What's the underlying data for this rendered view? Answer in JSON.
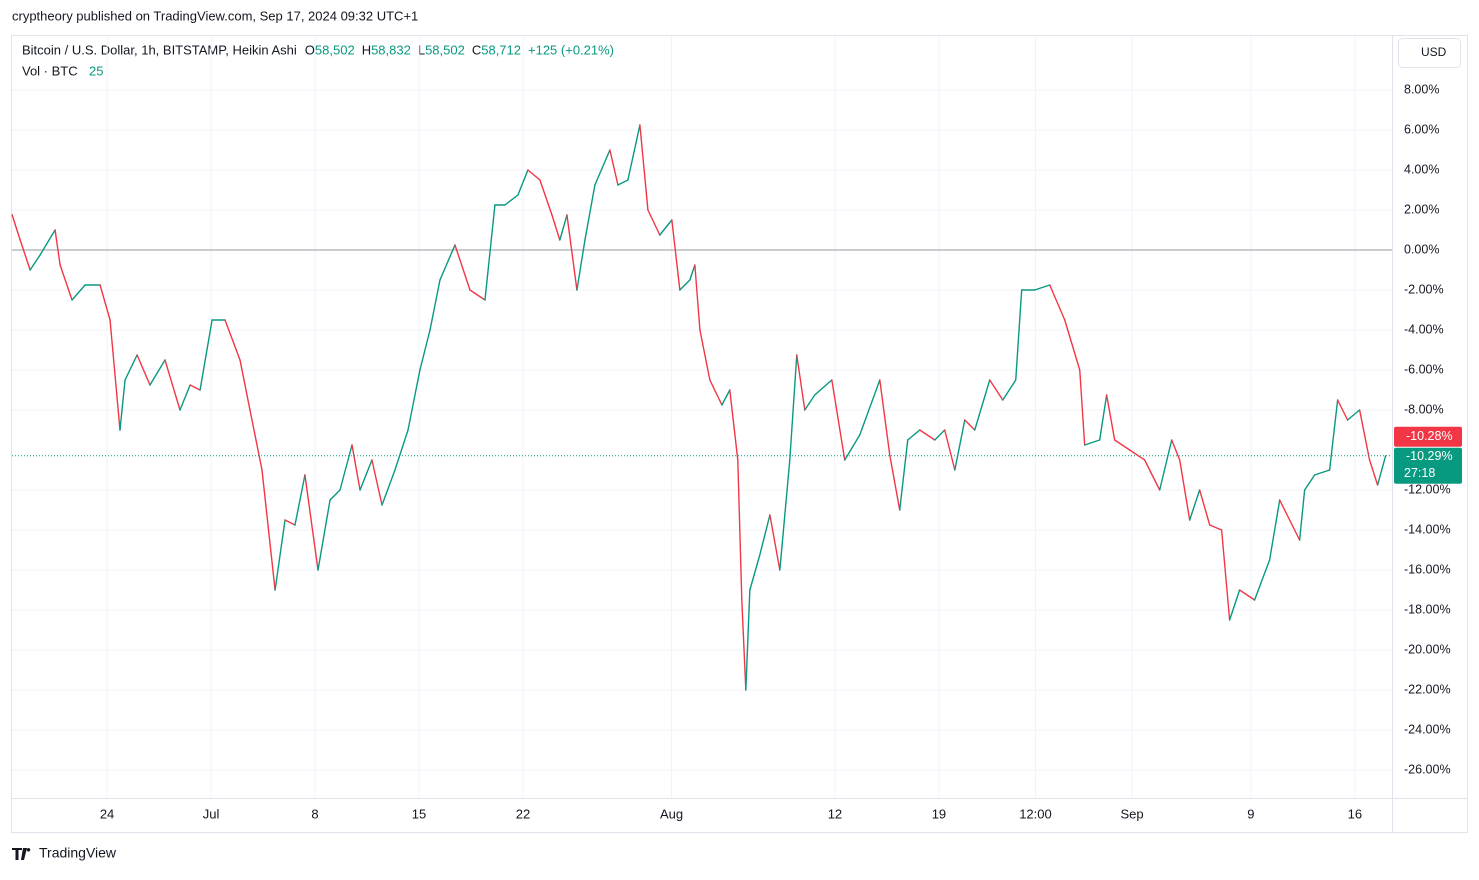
{
  "header": {
    "publisher": "cryptheory published on TradingView.com, Sep 17, 2024 09:32 UTC+1",
    "symbol": "Bitcoin / U.S. Dollar, 1h, BITSTAMP, Heikin Ashi",
    "ohlc": [
      {
        "key": "O",
        "value": "58,502"
      },
      {
        "key": "H",
        "value": "58,832"
      },
      {
        "key": "L",
        "value": "58,502"
      },
      {
        "key": "C",
        "value": "58,712"
      }
    ],
    "change": "+125 (+0.21%)",
    "volume_label": "Vol · BTC",
    "volume_value": "25",
    "currency": "USD"
  },
  "footer": {
    "brand": "TradingView"
  },
  "chart_data": {
    "type": "line",
    "series": [
      {
        "name": "Bitcoin / U.S. Dollar",
        "up_color": "#089981",
        "down_color": "#f23645",
        "x": [
          -6.39,
          -5.85,
          -5.18,
          -4.51,
          -3.5,
          -3.16,
          -2.36,
          -1.48,
          -0.47,
          0.2,
          0.87,
          1.21,
          2.02,
          2.89,
          3.9,
          4.91,
          5.59,
          6.26,
          7.07,
          7.94,
          8.95,
          9.62,
          10.43,
          11.31,
          11.98,
          12.65,
          13.32,
          14.2,
          15.01,
          15.68,
          16.49,
          17.03,
          17.83,
          18.51,
          19.38,
          20.26,
          21.06,
          21.74,
          22.41,
          23.42,
          24.43,
          25.44,
          26.11,
          26.78,
          27.66,
          28.33,
          29.14,
          29.95,
          30.48,
          30.96,
          31.63,
          32.17,
          32.84,
          33.85,
          34.39,
          35.06,
          35.87,
          36.41,
          37.21,
          38.02,
          38.56,
          39.23,
          39.57,
          39.91,
          40.58,
          41.39,
          41.92,
          42.46,
          42.73,
          43,
          43.27,
          43.94,
          44.62,
          45.29,
          45.96,
          46.43,
          46.97,
          47.64,
          48.79,
          49.66,
          50.67,
          52.02,
          52.69,
          53.36,
          53.9,
          54.71,
          55.72,
          56.39,
          57.07,
          57.74,
          58.41,
          59.42,
          60.3,
          61.17,
          61.57,
          62.45,
          63.46,
          64.47,
          65.48,
          65.81,
          66.82,
          67.29,
          67.83,
          68.84,
          69.85,
          70.86,
          71.67,
          72.21,
          72.88,
          73.55,
          74.23,
          75.03,
          75.57,
          76.24,
          77.25,
          78.26,
          78.94,
          79.61,
          80.28,
          80.62,
          81.29,
          82.3,
          82.84,
          83.51,
          84.32,
          84.99,
          85.53,
          86.07
        ],
        "values": [
          1.75,
          0.5,
          -1,
          -0.25,
          1,
          -0.75,
          -2.5,
          -1.75,
          -1.75,
          -3.5,
          -9,
          -6.5,
          -5.25,
          -6.75,
          -5.5,
          -8,
          -6.75,
          -7,
          -3.5,
          -3.5,
          -5.5,
          -8,
          -11,
          -17,
          -13.5,
          -13.75,
          -11.25,
          -16,
          -12.5,
          -12,
          -9.75,
          -12,
          -10.5,
          -12.75,
          -11,
          -9,
          -6,
          -4,
          -1.5,
          0.25,
          -2,
          -2.5,
          2.25,
          2.25,
          2.75,
          4,
          3.5,
          1.75,
          0.5,
          1.75,
          -2,
          0.5,
          3.25,
          5,
          3.25,
          3.5,
          6.25,
          2,
          0.75,
          1.5,
          -2,
          -1.5,
          -0.75,
          -4,
          -6.5,
          -7.75,
          -7,
          -10.5,
          -17.5,
          -22,
          -17,
          -15.25,
          -13.25,
          -16,
          -10.5,
          -5.25,
          -8,
          -7.25,
          -6.5,
          -10.5,
          -9.25,
          -6.5,
          -10.25,
          -13,
          -9.5,
          -9,
          -9.5,
          -9,
          -11,
          -8.5,
          -9,
          -6.5,
          -7.5,
          -6.5,
          -2,
          -2,
          -1.75,
          -3.5,
          -6,
          -9.75,
          -9.5,
          -7.25,
          -9.5,
          -10,
          -10.5,
          -12,
          -9.5,
          -10.5,
          -13.5,
          -12,
          -13.75,
          -14,
          -18.5,
          -17,
          -17.5,
          -15.5,
          -12.5,
          -13.5,
          -14.5,
          -12,
          -11.25,
          -11,
          -7.5,
          -8.5,
          -8,
          -10.5,
          -11.75,
          -10.29
        ]
      }
    ],
    "xlim": [
      -6.4,
      86.5
    ],
    "xticks": [
      {
        "value": 0,
        "label": "24"
      },
      {
        "value": 7,
        "label": "Jul"
      },
      {
        "value": 14,
        "label": "8"
      },
      {
        "value": 21,
        "label": "15"
      },
      {
        "value": 28,
        "label": "22"
      },
      {
        "value": 38,
        "label": "Aug"
      },
      {
        "value": 49,
        "label": "12"
      },
      {
        "value": 56,
        "label": "19"
      },
      {
        "value": 62.5,
        "label": "12:00"
      },
      {
        "value": 69,
        "label": "Sep"
      },
      {
        "value": 77,
        "label": "9"
      },
      {
        "value": 84,
        "label": "16"
      }
    ],
    "ylim": [
      -27.4,
      10.65
    ],
    "yticks": [
      {
        "value": 8,
        "label": "8.00%"
      },
      {
        "value": 6,
        "label": "6.00%"
      },
      {
        "value": 4,
        "label": "4.00%"
      },
      {
        "value": 2,
        "label": "2.00%"
      },
      {
        "value": 0,
        "label": "0.00%"
      },
      {
        "value": -2,
        "label": "-2.00%"
      },
      {
        "value": -4,
        "label": "-4.00%"
      },
      {
        "value": -6,
        "label": "-6.00%"
      },
      {
        "value": -8,
        "label": "-8.00%"
      },
      {
        "value": -12,
        "label": "-12.00%"
      },
      {
        "value": -14,
        "label": "-14.00%"
      },
      {
        "value": -16,
        "label": "-16.00%"
      },
      {
        "value": -18,
        "label": "-18.00%"
      },
      {
        "value": -20,
        "label": "-20.00%"
      },
      {
        "value": -22,
        "label": "-22.00%"
      },
      {
        "value": -24,
        "label": "-24.00%"
      },
      {
        "value": -26,
        "label": "-26.00%"
      }
    ],
    "grid": true,
    "last_price": {
      "value": -10.29,
      "label": "-10.29%",
      "color": "#089981"
    },
    "prev_price": {
      "value": -10.28,
      "label": "-10.28%",
      "color": "#f23645"
    },
    "countdown": "27:18"
  }
}
